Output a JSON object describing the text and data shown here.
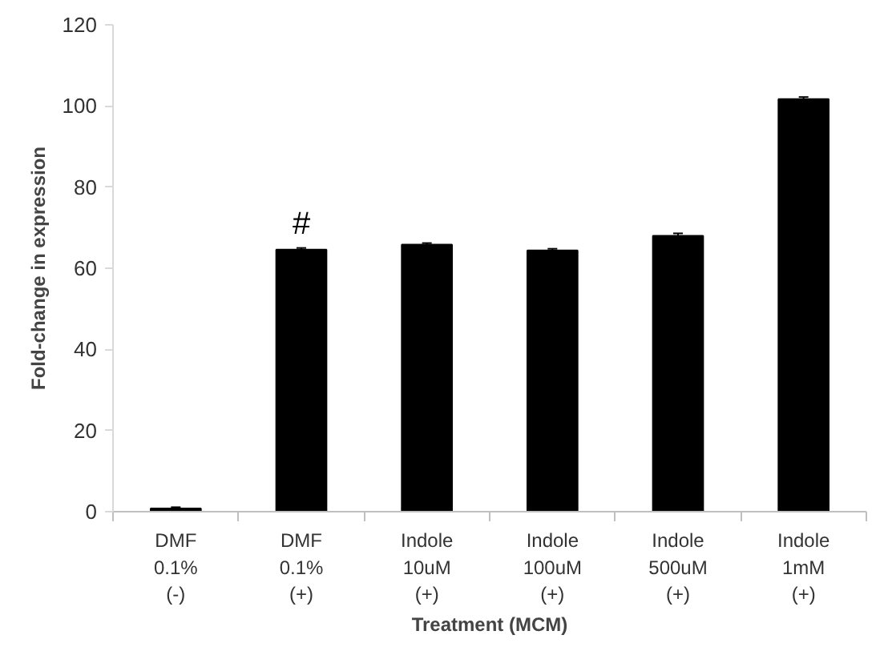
{
  "chart_data": {
    "type": "bar",
    "xlabel": "Treatment (MCM)",
    "ylabel": "Fold-change in expression",
    "categories": [
      "DMF\n0.1%\n(-)",
      "DMF\n0.1%\n(+)",
      "Indole\n10uM\n(+)",
      "Indole\n100uM\n(+)",
      "Indole\n500uM\n(+)",
      "Indole\n1mM\n(+)"
    ],
    "values": [
      0.8,
      64.6,
      65.8,
      64.4,
      68,
      101.7
    ],
    "errors": [
      0.3,
      0.4,
      0.4,
      0.4,
      0.6,
      0.5
    ],
    "color": "#000000",
    "ylim": [
      0,
      120
    ],
    "yticks": [
      0,
      20,
      40,
      60,
      80,
      100,
      120
    ],
    "grid": false,
    "annotations": [
      {
        "text": "#",
        "x": "DMF\n0.1%\n(+)",
        "y": 64.6
      }
    ]
  }
}
